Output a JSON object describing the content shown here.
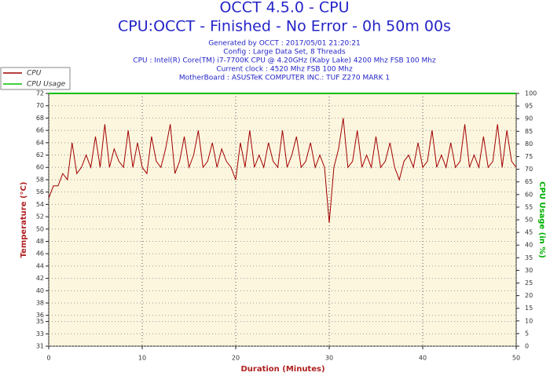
{
  "chart_data": {
    "type": "line",
    "title": "OCCT 4.5.0 - CPU",
    "subtitle": "CPU:OCCT - Finished - No Error - 0h 50m 00s",
    "info": [
      "Generated by OCCT : 2017/05/01 21:20:21",
      "Config : Large Data Set, 8 Threads",
      "CPU : Intel(R) Core(TM) i7-7700K CPU @ 4.20GHz (Kaby Lake) 4200 Mhz FSB 100 Mhz",
      "Current clock : 4520 Mhz FSB 100 Mhz",
      "MotherBoard : ASUSTeK COMPUTER INC.: TUF Z270 MARK 1"
    ],
    "x_label": "Duration (Minutes)",
    "y_label": "Temperature (°C)",
    "y2_label": "CPU Usage (in %)",
    "xlim": [
      0,
      50
    ],
    "xticks": [
      0,
      10,
      20,
      30,
      40,
      50
    ],
    "ylim": [
      31,
      72
    ],
    "yticks": [
      72,
      70,
      68,
      66,
      64,
      62,
      60,
      58,
      56,
      54,
      52,
      50,
      48,
      46,
      44,
      42,
      40,
      38,
      36,
      35,
      33,
      31
    ],
    "y2lim": [
      0,
      100
    ],
    "y2ticks": [
      0,
      5,
      10,
      15,
      20,
      25,
      30,
      35,
      40,
      45,
      50,
      55,
      60,
      65,
      70,
      75,
      80,
      85,
      90,
      95,
      100
    ],
    "grid": true,
    "legend": "top-left",
    "series": [
      {
        "name": "CPU",
        "color": "#a00000",
        "x": [
          0,
          0.5,
          1,
          1.5,
          2,
          2.5,
          3,
          3.5,
          4,
          4.5,
          5,
          5.5,
          6,
          6.5,
          7,
          7.5,
          8,
          8.5,
          9,
          9.5,
          10,
          10.5,
          11,
          11.5,
          12,
          12.5,
          13,
          13.5,
          14,
          14.5,
          15,
          15.5,
          16,
          16.5,
          17,
          17.5,
          18,
          18.5,
          19,
          19.5,
          20,
          20.5,
          21,
          21.5,
          22,
          22.5,
          23,
          23.5,
          24,
          24.5,
          25,
          25.5,
          26,
          26.5,
          27,
          27.5,
          28,
          28.5,
          29,
          29.5,
          30,
          30.5,
          31,
          31.5,
          32,
          32.5,
          33,
          33.5,
          34,
          34.5,
          35,
          35.5,
          36,
          36.5,
          37,
          37.5,
          38,
          38.5,
          39,
          39.5,
          40,
          40.5,
          41,
          41.5,
          42,
          42.5,
          43,
          43.5,
          44,
          44.5,
          45,
          45.5,
          46,
          46.5,
          47,
          47.5,
          48,
          48.5,
          49,
          49.5,
          50
        ],
        "values": [
          55,
          57,
          57,
          59,
          58,
          64,
          59,
          60,
          62,
          60,
          65,
          60,
          67,
          60,
          63,
          61,
          60,
          66,
          60,
          64,
          60,
          59,
          65,
          61,
          60,
          63,
          67,
          59,
          61,
          65,
          60,
          62,
          66,
          60,
          61,
          64,
          60,
          63,
          61,
          60,
          58,
          64,
          60,
          66,
          60,
          62,
          60,
          64,
          61,
          60,
          66,
          60,
          62,
          65,
          60,
          61,
          64,
          60,
          62,
          60,
          51,
          60,
          63,
          68,
          60,
          61,
          66,
          60,
          62,
          60,
          65,
          60,
          61,
          64,
          60,
          58,
          61,
          62,
          60,
          64,
          60,
          61,
          66,
          60,
          62,
          60,
          64,
          60,
          61,
          67,
          60,
          62,
          60,
          65,
          60,
          61,
          67,
          60,
          66,
          61,
          60
        ]
      },
      {
        "name": "CPU Usage",
        "color": "#00c000",
        "axis": "y2",
        "x": [
          0,
          50
        ],
        "values": [
          100,
          100
        ]
      }
    ]
  }
}
